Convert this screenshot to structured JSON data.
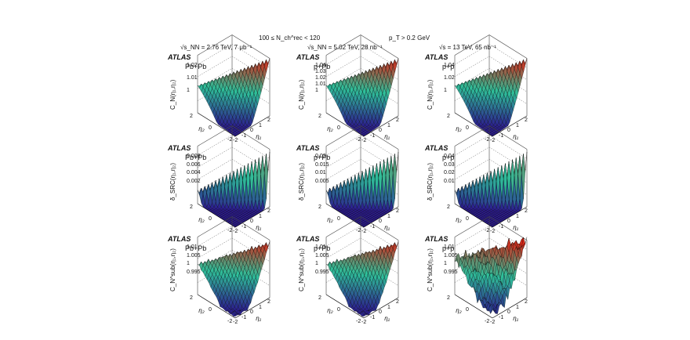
{
  "header": {
    "multiplicity": "100 ≤ N_ch^rec < 120",
    "pt_cut": "p_T > 0.2 GeV"
  },
  "columns": [
    {
      "energy_label": "√s_NN = 2.76 TeV, 7 μb⁻¹",
      "system": "Pb+Pb"
    },
    {
      "energy_label": "√s_NN = 5.02 TeV, 28 nb⁻¹",
      "system": "p+Pb"
    },
    {
      "energy_label": "√s = 13 TeV, 65 nb⁻¹",
      "system": "p+p"
    }
  ],
  "atlas_label": "ATLAS",
  "axes": {
    "x_label": "η₁",
    "y_label": "η₂",
    "x_ticks": [
      "-2",
      "-1",
      "0",
      "1",
      "2"
    ],
    "y_ticks": [
      "2",
      "0",
      "-2"
    ]
  },
  "colors": {
    "low": "#2b1a8f",
    "mid": "#2fbf9a",
    "high": "#d62a1a",
    "wire": "#000000"
  },
  "chart_data": [
    {
      "type": "surface",
      "row": 0,
      "col": 0,
      "title": "Pb+Pb",
      "zlabel": "C_N(η₁,η₂)",
      "zticks": [
        "1.02",
        "1.01",
        "1"
      ],
      "zlim": [
        0.99,
        1.03
      ],
      "shape": "ridge",
      "peak": 1.025
    },
    {
      "type": "surface",
      "row": 0,
      "col": 1,
      "title": "p+Pb",
      "zlabel": "C_N(η₁,η₂)",
      "zticks": [
        "1.04",
        "1.03",
        "1.02",
        "1.01",
        "1"
      ],
      "zlim": [
        0.99,
        1.05
      ],
      "shape": "ridge",
      "peak": 1.045
    },
    {
      "type": "surface",
      "row": 0,
      "col": 2,
      "title": "p+p",
      "zlabel": "C_N(η₁,η₂)",
      "zticks": [
        "1.04",
        "1.02",
        "1"
      ],
      "zlim": [
        0.98,
        1.05
      ],
      "shape": "ridge",
      "peak": 1.045
    },
    {
      "type": "surface",
      "row": 1,
      "col": 0,
      "title": "Pb+Pb",
      "zlabel": "δ_SRC(η₁,η₂)",
      "zticks": [
        "0.008",
        "0.006",
        "0.004",
        "0.002"
      ],
      "zlim": [
        0,
        0.01
      ],
      "shape": "spike",
      "peak": 0.0095
    },
    {
      "type": "surface",
      "row": 1,
      "col": 1,
      "title": "p+Pb",
      "zlabel": "δ_SRC(η₁,η₂)",
      "zticks": [
        "0.02",
        "0.015",
        "0.01",
        "0.005"
      ],
      "zlim": [
        0,
        0.025
      ],
      "shape": "spike",
      "peak": 0.024
    },
    {
      "type": "surface",
      "row": 1,
      "col": 2,
      "title": "p+p",
      "zlabel": "δ_SRC(η₁,η₂)",
      "zticks": [
        "0.04",
        "0.03",
        "0.02",
        "0.01"
      ],
      "zlim": [
        0,
        0.05
      ],
      "shape": "spike",
      "peak": 0.048
    },
    {
      "type": "surface",
      "row": 2,
      "col": 0,
      "title": "Pb+Pb",
      "zlabel": "C_N^sub(η₁,η₂)",
      "zticks": [
        "1.01",
        "1.005",
        "1",
        "0.995"
      ],
      "zlim": [
        0.99,
        1.015
      ],
      "shape": "dome",
      "peak": 1.012
    },
    {
      "type": "surface",
      "row": 2,
      "col": 1,
      "title": "p+Pb",
      "zlabel": "C_N^sub(η₁,η₂)",
      "zticks": [
        "1.01",
        "1.005",
        "1",
        "0.995"
      ],
      "zlim": [
        0.99,
        1.015
      ],
      "shape": "dome",
      "peak": 1.012
    },
    {
      "type": "surface",
      "row": 2,
      "col": 2,
      "title": "p+p",
      "zlabel": "C_N^sub(η₁,η₂)",
      "zticks": [
        "1.01",
        "1.005",
        "1",
        "0.995"
      ],
      "zlim": [
        0.99,
        1.015
      ],
      "shape": "rough",
      "peak": 1.012
    }
  ]
}
